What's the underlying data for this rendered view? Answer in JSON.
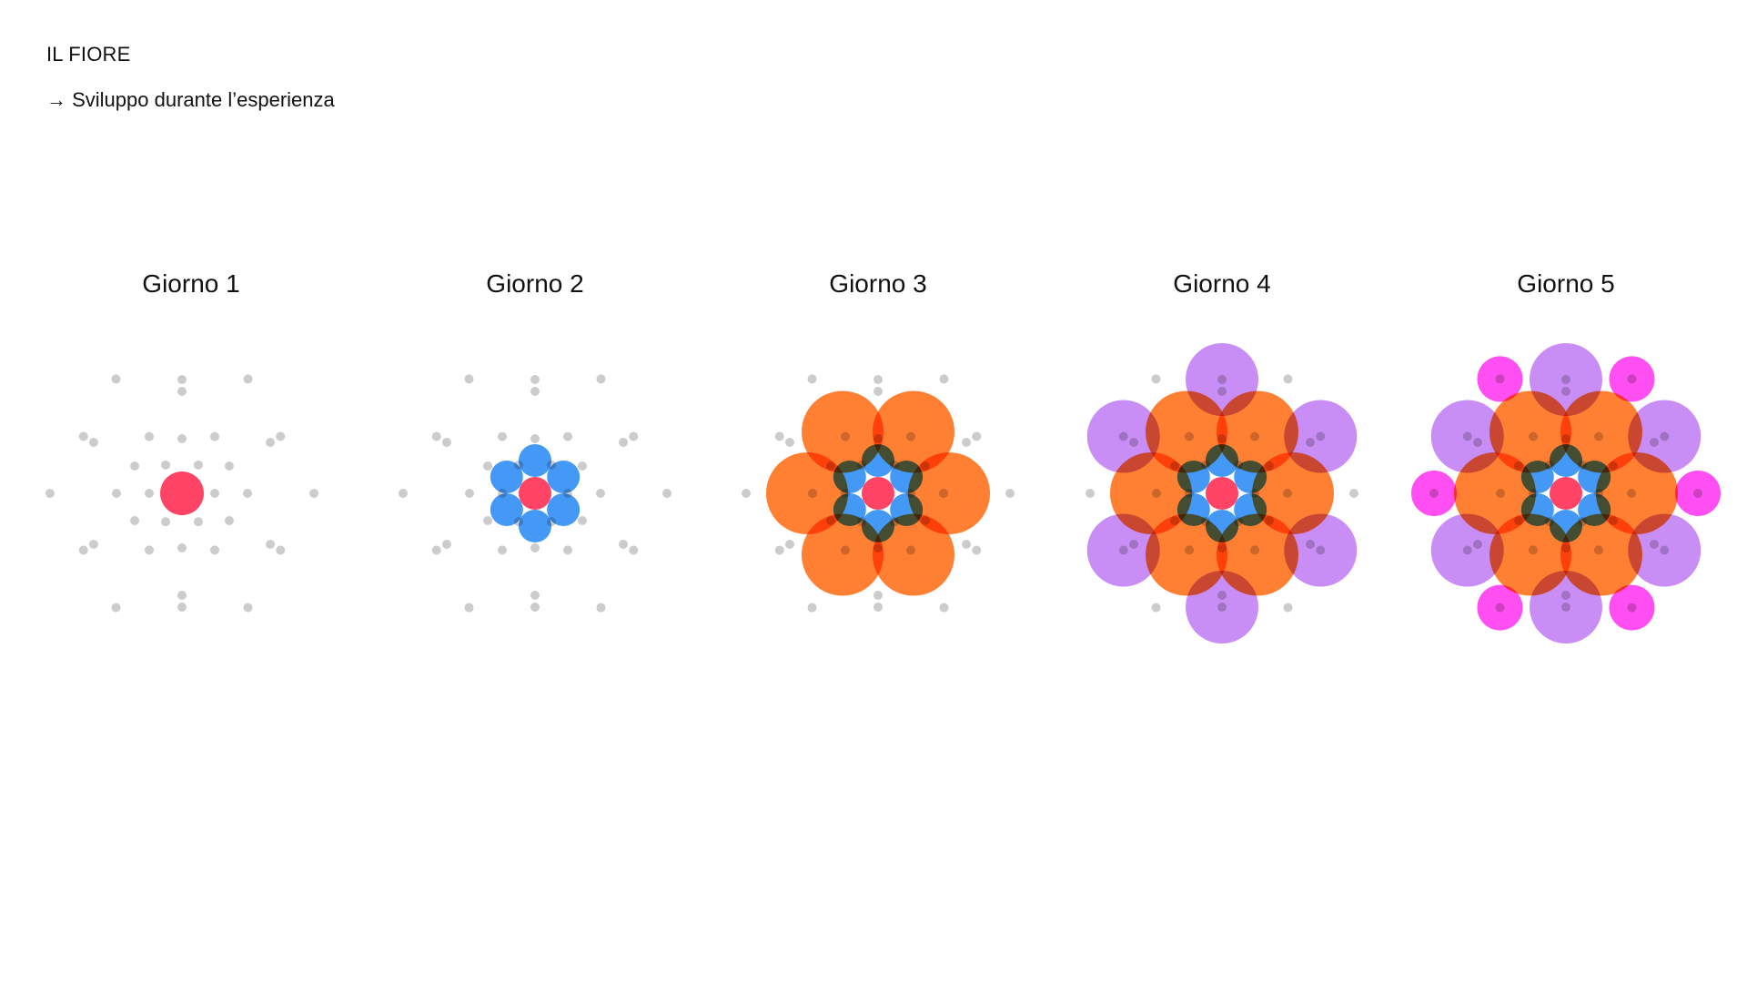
{
  "header": {
    "title": "IL FIORE",
    "subtitle": "→ Sviluppo durante l’esperienza"
  },
  "days": [
    {
      "label": "Giorno 1",
      "stage": 1
    },
    {
      "label": "Giorno 2",
      "stage": 2
    },
    {
      "label": "Giorno 3",
      "stage": 3
    },
    {
      "label": "Giorno 4",
      "stage": 4
    },
    {
      "label": "Giorno 5",
      "stage": 5
    }
  ],
  "colors": {
    "center": "#ff4466",
    "ring1": "#4499f7",
    "ring2": "#ff7f33",
    "ring3": "#c98ef5",
    "ring4": "#ff4ef2",
    "guide_dot": "#cccccc"
  }
}
